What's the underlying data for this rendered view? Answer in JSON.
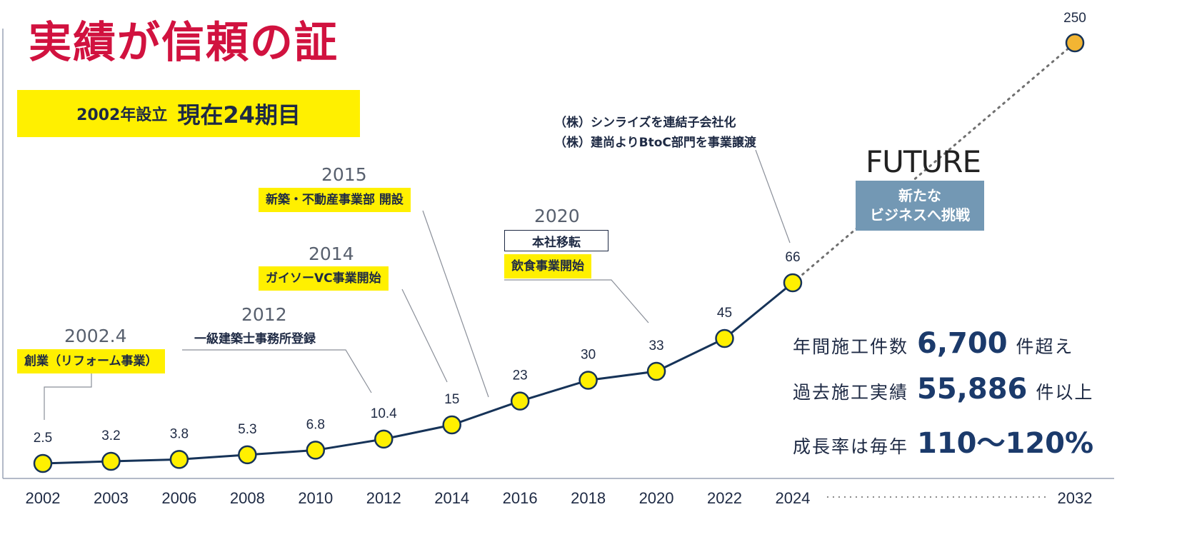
{
  "title": "実績が信頼の証",
  "establishment": {
    "founded": "2002年設立",
    "period": "現在24期目"
  },
  "future": {
    "title": "FUTURE",
    "line1": "新たな",
    "line2": "ビジネスへ挑戦"
  },
  "milestones": {
    "m2002": {
      "year": "2002.4",
      "tag": "創業（リフォーム事業）"
    },
    "m2012": {
      "year": "2012",
      "note": "一級建築士事務所登録"
    },
    "m2014": {
      "year": "2014",
      "tag": "ガイソーVC事業開始"
    },
    "m2015": {
      "year": "2015",
      "tag": "新築・不動産事業部 開設"
    },
    "m2020": {
      "year": "2020",
      "tag1": "本社移転",
      "tag2": "飲食事業開始"
    },
    "m2024": {
      "note1": "（株）シンライズを連結子会社化",
      "note2": "（株）建尚よりBtoC部門を事業譲渡"
    }
  },
  "stats": [
    {
      "label": "年間施工件数",
      "value": "6,700",
      "unit": "件超え"
    },
    {
      "label": "過去施工実績",
      "value": "55,886",
      "unit": "件以上"
    },
    {
      "label": "成長率は毎年",
      "value": "110～120%",
      "unit": ""
    }
  ],
  "colors": {
    "title_red": "#d1123f",
    "yellow": "#fff000",
    "navy": "#1e2a44",
    "line": "#163358",
    "future_box": "#7398b4",
    "projection_point": "#f2b533"
  },
  "chart_data": {
    "type": "line",
    "categories": [
      "2002",
      "2003",
      "2006",
      "2008",
      "2010",
      "2012",
      "2014",
      "2016",
      "2018",
      "2020",
      "2022",
      "2024"
    ],
    "values": [
      2.5,
      3.2,
      3.8,
      5.3,
      6.8,
      10.4,
      15,
      23,
      30,
      33,
      45,
      66
    ],
    "value_labels": [
      "2.5",
      "3.2",
      "3.8",
      "5.3",
      "6.8",
      "10.4",
      "15",
      "23",
      "30",
      "33",
      "45",
      "66"
    ],
    "projection": {
      "category": "2032",
      "value": 250,
      "label": "250",
      "style": "dotted"
    },
    "grid": false,
    "legend": "none"
  }
}
